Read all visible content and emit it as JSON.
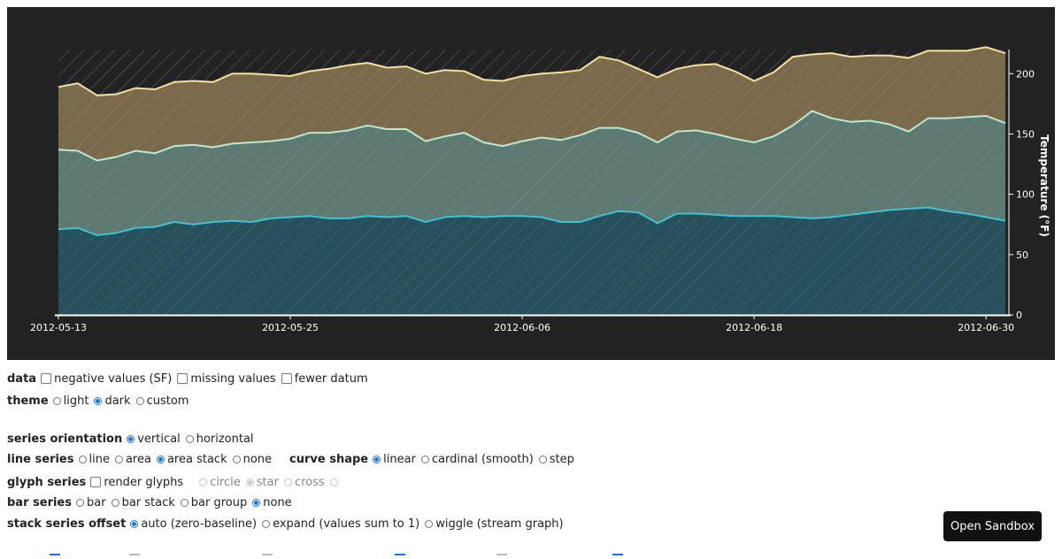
{
  "chart_data": {
    "type": "area",
    "stacked": true,
    "stack_offset": "auto (zero-baseline)",
    "x": [
      "2012-05-13",
      "2012-05-14",
      "2012-05-15",
      "2012-05-16",
      "2012-05-17",
      "2012-05-18",
      "2012-05-19",
      "2012-05-20",
      "2012-05-21",
      "2012-05-22",
      "2012-05-23",
      "2012-05-24",
      "2012-05-25",
      "2012-05-26",
      "2012-05-27",
      "2012-05-28",
      "2012-05-29",
      "2012-05-30",
      "2012-05-31",
      "2012-06-01",
      "2012-06-02",
      "2012-06-03",
      "2012-06-04",
      "2012-06-05",
      "2012-06-06",
      "2012-06-07",
      "2012-06-08",
      "2012-06-09",
      "2012-06-10",
      "2012-06-11",
      "2012-06-12",
      "2012-06-13",
      "2012-06-14",
      "2012-06-15",
      "2012-06-16",
      "2012-06-17",
      "2012-06-18",
      "2012-06-19",
      "2012-06-20",
      "2012-06-21",
      "2012-06-22",
      "2012-06-23",
      "2012-06-24",
      "2012-06-25",
      "2012-06-26",
      "2012-06-27",
      "2012-06-28",
      "2012-06-29",
      "2012-06-30",
      "2012-07-01"
    ],
    "series": [
      {
        "values": [
          71,
          72,
          66,
          68,
          72,
          73,
          77,
          75,
          77,
          78,
          77,
          80,
          81,
          82,
          80,
          80,
          82,
          81,
          82,
          77,
          81,
          82,
          81,
          82,
          82,
          81,
          77,
          77,
          82,
          86,
          85,
          76,
          84,
          84,
          83,
          82,
          82,
          82,
          81,
          80,
          81,
          83,
          85,
          87,
          88,
          89,
          86,
          84,
          81,
          78
        ]
      },
      {
        "values": [
          66,
          64,
          62,
          63,
          64,
          61,
          63,
          66,
          62,
          64,
          66,
          64,
          65,
          69,
          71,
          73,
          75,
          73,
          72,
          67,
          67,
          69,
          62,
          58,
          62,
          66,
          68,
          72,
          73,
          69,
          66,
          67,
          68,
          69,
          67,
          64,
          61,
          66,
          76,
          89,
          82,
          77,
          76,
          71,
          64,
          74,
          77,
          80,
          84,
          81
        ]
      },
      {
        "values": [
          52,
          56,
          54,
          52,
          52,
          53,
          53,
          53,
          54,
          58,
          57,
          55,
          52,
          51,
          53,
          54,
          52,
          51,
          52,
          56,
          55,
          51,
          52,
          54,
          54,
          53,
          56,
          54,
          59,
          56,
          53,
          54,
          52,
          54,
          58,
          56,
          51,
          53,
          57,
          47,
          54,
          54,
          54,
          57,
          61,
          56,
          56,
          55,
          57,
          58
        ]
      }
    ],
    "x_ticks": [
      "2012-05-13",
      "2012-05-25",
      "2012-06-06",
      "2012-06-18",
      "2012-06-30"
    ],
    "y_ticks": [
      0,
      50,
      100,
      150,
      200
    ],
    "ylabel": "Temperature (°F)",
    "ylim": [
      0,
      220
    ],
    "y_axis_side": "right",
    "colors": [
      "#25505c",
      "#5c7a71",
      "#7a6a4b"
    ],
    "line_colors": [
      "#40c2d6",
      "#b8ead6",
      "#f7df9e"
    ],
    "background": "#222222",
    "pattern": "diagonal-lines"
  },
  "controls": {
    "data": {
      "label": "data",
      "options": [
        {
          "label": "negative values (SF)",
          "checked": false
        },
        {
          "label": "missing values",
          "checked": false
        },
        {
          "label": "fewer datum",
          "checked": false
        }
      ]
    },
    "theme": {
      "label": "theme",
      "options": [
        {
          "label": "light",
          "checked": false
        },
        {
          "label": "dark",
          "checked": true
        },
        {
          "label": "custom",
          "checked": false
        }
      ]
    },
    "series_orientation": {
      "label": "series orientation",
      "options": [
        {
          "label": "vertical",
          "checked": true
        },
        {
          "label": "horizontal",
          "checked": false
        }
      ]
    },
    "line_series": {
      "label": "line series",
      "options": [
        {
          "label": "line",
          "checked": false
        },
        {
          "label": "area",
          "checked": false
        },
        {
          "label": "area stack",
          "checked": true
        },
        {
          "label": "none",
          "checked": false
        }
      ]
    },
    "curve_shape": {
      "label": "curve shape",
      "options": [
        {
          "label": "linear",
          "checked": true
        },
        {
          "label": "cardinal (smooth)",
          "checked": false
        },
        {
          "label": "step",
          "checked": false
        }
      ]
    },
    "glyph_series": {
      "label": "glyph series",
      "checkbox": {
        "label": "render glyphs",
        "checked": false
      },
      "options": [
        {
          "label": "circle",
          "checked": false
        },
        {
          "label": "star",
          "checked": true
        },
        {
          "label": "cross",
          "checked": false
        }
      ]
    },
    "bar_series": {
      "label": "bar series",
      "options": [
        {
          "label": "bar",
          "checked": false
        },
        {
          "label": "bar stack",
          "checked": false
        },
        {
          "label": "bar group",
          "checked": false
        },
        {
          "label": "none",
          "checked": true
        }
      ]
    },
    "stack_series_offset": {
      "label": "stack series offset",
      "options": [
        {
          "label": "auto (zero-baseline)",
          "checked": true
        },
        {
          "label": "expand (values sum to 1)",
          "checked": false
        },
        {
          "label": "wiggle (stream graph)",
          "checked": false
        }
      ]
    }
  },
  "open_sandbox_label": "Open Sandbox"
}
